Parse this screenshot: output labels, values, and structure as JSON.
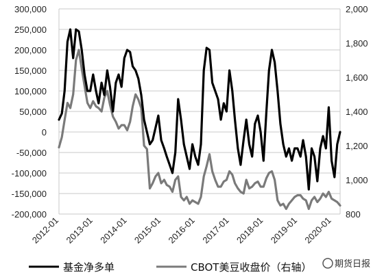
{
  "chart_data": {
    "type": "line",
    "left_axis": {
      "min": -200000,
      "max": 300000,
      "ticks": [
        "300,000",
        "250,000",
        "200,000",
        "150,000",
        "100,000",
        "50,000",
        "0",
        "-50,000",
        "-100,000",
        "-150,000",
        "-200,000"
      ],
      "tick_values": [
        300000,
        250000,
        200000,
        150000,
        100000,
        50000,
        0,
        -50000,
        -100000,
        -150000,
        -200000
      ]
    },
    "right_axis": {
      "min": 800,
      "max": 2000,
      "ticks": [
        "2,000",
        "1,800",
        "1,600",
        "1,400",
        "1,200",
        "1,000",
        "800"
      ],
      "tick_values": [
        2000,
        1800,
        1600,
        1400,
        1200,
        1000,
        800
      ]
    },
    "x_axis": {
      "min": "2012-01",
      "max": "2020-04",
      "ticks": [
        "2012-01",
        "2013-01",
        "2014-01",
        "2015-01",
        "2016-01",
        "2017-01",
        "2018-01",
        "2019-01",
        "2020-01"
      ]
    },
    "grid": "horizontal",
    "legend_position": "bottom",
    "series": [
      {
        "name": "基金净多单",
        "axis": "left",
        "color": "#000000",
        "points": [
          [
            "2012-01-01",
            30000
          ],
          [
            "2012-02-01",
            45000
          ],
          [
            "2012-03-01",
            100000
          ],
          [
            "2012-04-01",
            220000
          ],
          [
            "2012-05-01",
            250000
          ],
          [
            "2012-06-01",
            180000
          ],
          [
            "2012-07-01",
            250000
          ],
          [
            "2012-08-01",
            245000
          ],
          [
            "2012-09-01",
            200000
          ],
          [
            "2012-10-01",
            140000
          ],
          [
            "2012-11-01",
            100000
          ],
          [
            "2012-12-01",
            100000
          ],
          [
            "2013-01-01",
            140000
          ],
          [
            "2013-02-01",
            100000
          ],
          [
            "2013-03-01",
            70000
          ],
          [
            "2013-04-01",
            120000
          ],
          [
            "2013-05-01",
            90000
          ],
          [
            "2013-06-01",
            150000
          ],
          [
            "2013-07-01",
            110000
          ],
          [
            "2013-08-01",
            50000
          ],
          [
            "2013-09-01",
            120000
          ],
          [
            "2013-10-01",
            140000
          ],
          [
            "2013-11-01",
            110000
          ],
          [
            "2013-12-01",
            180000
          ],
          [
            "2014-01-01",
            200000
          ],
          [
            "2014-02-01",
            195000
          ],
          [
            "2014-03-01",
            160000
          ],
          [
            "2014-04-01",
            150000
          ],
          [
            "2014-05-01",
            130000
          ],
          [
            "2014-06-01",
            90000
          ],
          [
            "2014-07-01",
            30000
          ],
          [
            "2014-08-01",
            0
          ],
          [
            "2014-09-01",
            -30000
          ],
          [
            "2014-10-01",
            -20000
          ],
          [
            "2014-11-01",
            10000
          ],
          [
            "2014-12-01",
            40000
          ],
          [
            "2015-01-01",
            -20000
          ],
          [
            "2015-02-01",
            -40000
          ],
          [
            "2015-03-01",
            -60000
          ],
          [
            "2015-04-01",
            -80000
          ],
          [
            "2015-05-01",
            -100000
          ],
          [
            "2015-06-01",
            -50000
          ],
          [
            "2015-07-01",
            80000
          ],
          [
            "2015-08-01",
            30000
          ],
          [
            "2015-09-01",
            -30000
          ],
          [
            "2015-10-01",
            -60000
          ],
          [
            "2015-11-01",
            -90000
          ],
          [
            "2015-12-01",
            -30000
          ],
          [
            "2016-01-01",
            -60000
          ],
          [
            "2016-02-01",
            -80000
          ],
          [
            "2016-03-01",
            -30000
          ],
          [
            "2016-04-01",
            150000
          ],
          [
            "2016-05-01",
            205000
          ],
          [
            "2016-06-01",
            200000
          ],
          [
            "2016-07-01",
            120000
          ],
          [
            "2016-08-01",
            100000
          ],
          [
            "2016-09-01",
            80000
          ],
          [
            "2016-10-01",
            30000
          ],
          [
            "2016-11-01",
            70000
          ],
          [
            "2016-12-01",
            50000
          ],
          [
            "2017-01-01",
            150000
          ],
          [
            "2017-02-01",
            100000
          ],
          [
            "2017-03-01",
            30000
          ],
          [
            "2017-04-01",
            -40000
          ],
          [
            "2017-05-01",
            -80000
          ],
          [
            "2017-06-01",
            -20000
          ],
          [
            "2017-07-01",
            30000
          ],
          [
            "2017-08-01",
            -30000
          ],
          [
            "2017-09-01",
            -60000
          ],
          [
            "2017-10-01",
            20000
          ],
          [
            "2017-11-01",
            40000
          ],
          [
            "2017-12-01",
            0
          ],
          [
            "2018-01-01",
            -70000
          ],
          [
            "2018-02-01",
            50000
          ],
          [
            "2018-03-01",
            150000
          ],
          [
            "2018-04-01",
            200000
          ],
          [
            "2018-05-01",
            170000
          ],
          [
            "2018-06-01",
            100000
          ],
          [
            "2018-07-01",
            20000
          ],
          [
            "2018-08-01",
            -30000
          ],
          [
            "2018-09-01",
            -60000
          ],
          [
            "2018-10-01",
            -40000
          ],
          [
            "2018-11-01",
            -70000
          ],
          [
            "2018-12-01",
            -40000
          ],
          [
            "2019-01-01",
            -40000
          ],
          [
            "2019-02-01",
            -60000
          ],
          [
            "2019-03-01",
            -20000
          ],
          [
            "2019-04-01",
            -60000
          ],
          [
            "2019-05-01",
            -140000
          ],
          [
            "2019-06-01",
            -40000
          ],
          [
            "2019-07-01",
            -60000
          ],
          [
            "2019-08-01",
            -120000
          ],
          [
            "2019-09-01",
            -40000
          ],
          [
            "2019-10-01",
            -10000
          ],
          [
            "2019-11-01",
            -40000
          ],
          [
            "2019-12-01",
            60000
          ],
          [
            "2020-01-01",
            -70000
          ],
          [
            "2020-02-01",
            -110000
          ],
          [
            "2020-03-01",
            -30000
          ],
          [
            "2020-04-01",
            0
          ]
        ]
      },
      {
        "name": "CBOT美豆收盘价（右轴）",
        "axis": "right",
        "color": "#7a7a7a",
        "points": [
          [
            "2012-01-01",
            1190
          ],
          [
            "2012-02-01",
            1250
          ],
          [
            "2012-03-01",
            1350
          ],
          [
            "2012-04-01",
            1450
          ],
          [
            "2012-05-01",
            1420
          ],
          [
            "2012-06-01",
            1500
          ],
          [
            "2012-07-01",
            1700
          ],
          [
            "2012-08-01",
            1760
          ],
          [
            "2012-09-01",
            1650
          ],
          [
            "2012-10-01",
            1550
          ],
          [
            "2012-11-01",
            1450
          ],
          [
            "2012-12-01",
            1420
          ],
          [
            "2013-01-01",
            1460
          ],
          [
            "2013-02-01",
            1430
          ],
          [
            "2013-03-01",
            1420
          ],
          [
            "2013-04-01",
            1400
          ],
          [
            "2013-05-01",
            1480
          ],
          [
            "2013-06-01",
            1520
          ],
          [
            "2013-07-01",
            1440
          ],
          [
            "2013-08-01",
            1370
          ],
          [
            "2013-09-01",
            1340
          ],
          [
            "2013-10-01",
            1300
          ],
          [
            "2013-11-01",
            1320
          ],
          [
            "2013-12-01",
            1320
          ],
          [
            "2014-01-01",
            1290
          ],
          [
            "2014-02-01",
            1340
          ],
          [
            "2014-03-01",
            1430
          ],
          [
            "2014-04-01",
            1500
          ],
          [
            "2014-05-01",
            1470
          ],
          [
            "2014-06-01",
            1420
          ],
          [
            "2014-07-01",
            1200
          ],
          [
            "2014-08-01",
            1180
          ],
          [
            "2014-09-01",
            950
          ],
          [
            "2014-10-01",
            980
          ],
          [
            "2014-11-01",
            1020
          ],
          [
            "2014-12-01",
            1040
          ],
          [
            "2015-01-01",
            980
          ],
          [
            "2015-02-01",
            1000
          ],
          [
            "2015-03-01",
            970
          ],
          [
            "2015-04-01",
            960
          ],
          [
            "2015-05-01",
            930
          ],
          [
            "2015-06-01",
            1000
          ],
          [
            "2015-07-01",
            1020
          ],
          [
            "2015-08-01",
            900
          ],
          [
            "2015-09-01",
            880
          ],
          [
            "2015-10-01",
            900
          ],
          [
            "2015-11-01",
            860
          ],
          [
            "2015-12-01",
            880
          ],
          [
            "2016-01-01",
            870
          ],
          [
            "2016-02-01",
            860
          ],
          [
            "2016-03-01",
            900
          ],
          [
            "2016-04-01",
            1020
          ],
          [
            "2016-05-01",
            1080
          ],
          [
            "2016-06-01",
            1150
          ],
          [
            "2016-07-01",
            1050
          ],
          [
            "2016-08-01",
            1000
          ],
          [
            "2016-09-01",
            960
          ],
          [
            "2016-10-01",
            960
          ],
          [
            "2016-11-01",
            990
          ],
          [
            "2016-12-01",
            1000
          ],
          [
            "2017-01-01",
            1050
          ],
          [
            "2017-02-01",
            1030
          ],
          [
            "2017-03-01",
            980
          ],
          [
            "2017-04-01",
            950
          ],
          [
            "2017-05-01",
            930
          ],
          [
            "2017-06-01",
            920
          ],
          [
            "2017-07-01",
            1000
          ],
          [
            "2017-08-01",
            950
          ],
          [
            "2017-09-01",
            960
          ],
          [
            "2017-10-01",
            980
          ],
          [
            "2017-11-01",
            990
          ],
          [
            "2017-12-01",
            960
          ],
          [
            "2018-01-01",
            960
          ],
          [
            "2018-02-01",
            1010
          ],
          [
            "2018-03-01",
            1040
          ],
          [
            "2018-04-01",
            1050
          ],
          [
            "2018-05-01",
            1000
          ],
          [
            "2018-06-01",
            880
          ],
          [
            "2018-07-01",
            850
          ],
          [
            "2018-08-01",
            860
          ],
          [
            "2018-09-01",
            830
          ],
          [
            "2018-10-01",
            860
          ],
          [
            "2018-11-01",
            880
          ],
          [
            "2018-12-01",
            900
          ],
          [
            "2019-01-01",
            910
          ],
          [
            "2019-02-01",
            910
          ],
          [
            "2019-03-01",
            890
          ],
          [
            "2019-04-01",
            880
          ],
          [
            "2019-05-01",
            830
          ],
          [
            "2019-06-01",
            880
          ],
          [
            "2019-07-01",
            900
          ],
          [
            "2019-08-01",
            870
          ],
          [
            "2019-09-01",
            890
          ],
          [
            "2019-10-01",
            920
          ],
          [
            "2019-11-01",
            900
          ],
          [
            "2019-12-01",
            930
          ],
          [
            "2020-01-01",
            890
          ],
          [
            "2020-02-01",
            880
          ],
          [
            "2020-03-01",
            870
          ],
          [
            "2020-04-01",
            850
          ]
        ]
      }
    ]
  },
  "legend": {
    "series1_label": "基金净多单",
    "series2_label": "CBOT美豆收盘价（右轴）"
  },
  "watermark": "期货日报"
}
